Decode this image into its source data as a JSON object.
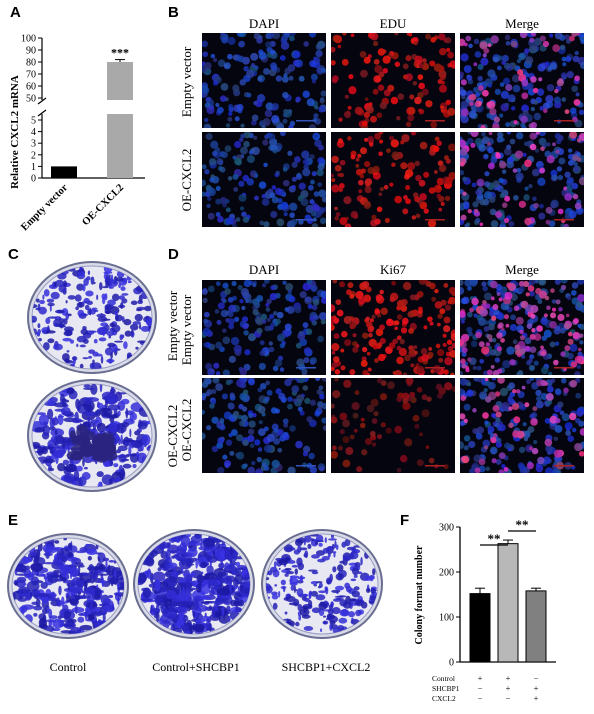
{
  "panels": {
    "A": {
      "label": "A",
      "chart_data": {
        "type": "bar",
        "categories": [
          "Empty vector",
          "OE-CXCL2"
        ],
        "values": [
          1,
          80
        ],
        "errors": [
          0,
          2
        ],
        "ylabel": "Relative CXCL2 mRNA",
        "yticks_lower": [
          "0",
          "1",
          "2",
          "3",
          "4",
          "5"
        ],
        "yticks_upper": [
          "50",
          "60",
          "70",
          "80",
          "90",
          "100"
        ],
        "broken_axis": true,
        "significance": "***",
        "colors": [
          "#000000",
          "#a9a9a9"
        ]
      }
    },
    "B": {
      "label": "B",
      "columns": [
        "DAPI",
        "EDU",
        "Merge"
      ],
      "rows": [
        "Empty vector",
        "OE-CXCL2"
      ]
    },
    "C": {
      "label": "C",
      "rows": [
        "Empty vector",
        "OE-CXCL2"
      ]
    },
    "D": {
      "label": "D",
      "columns": [
        "DAPI",
        "Ki67",
        "Merge"
      ],
      "rows": [
        "Empty vector",
        "OE-CXCL2"
      ]
    },
    "E": {
      "label": "E",
      "captions": [
        "Control",
        "Control+SHCBP1",
        "SHCBP1+CXCL2"
      ]
    },
    "F": {
      "label": "F",
      "chart_data": {
        "type": "bar",
        "categories": [
          "Control",
          "SHCBP1",
          "SHCBP1+CXCL2"
        ],
        "values": [
          152,
          263,
          158
        ],
        "errors": [
          12,
          8,
          6
        ],
        "ylabel": "Colony format number",
        "yticks": [
          "0",
          "100",
          "200",
          "300"
        ],
        "ylim": [
          0,
          300
        ],
        "significance": [
          "**",
          "**"
        ],
        "colors": [
          "#000000",
          "#b8b8b8",
          "#808080"
        ],
        "condition_rows": [
          {
            "name": "Control",
            "marks": [
              "+",
              "+",
              "−"
            ]
          },
          {
            "name": "SHCBP1",
            "marks": [
              "−",
              "+",
              "+"
            ]
          },
          {
            "name": "CXCL2",
            "marks": [
              "−",
              "−",
              "+"
            ]
          }
        ]
      }
    }
  }
}
